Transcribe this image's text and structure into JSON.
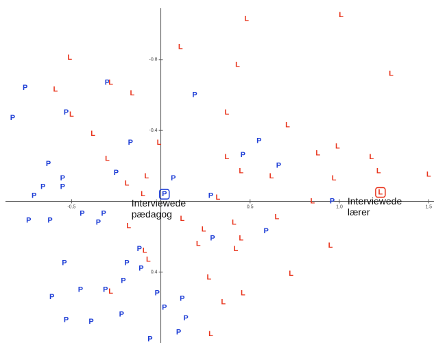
{
  "chart_data": {
    "type": "scatter",
    "xlim": [
      -0.87,
      1.53
    ],
    "ylim": [
      -1.09,
      0.8
    ],
    "y_inverted": true,
    "xticks": [
      -0.5,
      0.5,
      {
        "value": 1,
        "label": "1.0"
      },
      1.5
    ],
    "yticks": [
      -0.8,
      -0.4,
      0.4
    ],
    "series": [
      {
        "marker": "P",
        "color": "#1f3fd6",
        "x": [
          -0.76,
          -0.53,
          -0.83,
          -0.3,
          -0.17,
          -0.63,
          -0.25,
          -0.55,
          -0.66,
          -0.55,
          -0.71,
          0.07,
          0.19,
          0.55,
          0.46,
          0.66,
          0.28,
          -0.74,
          -0.62,
          -0.44,
          -0.32,
          -0.35,
          0.29,
          0.59,
          -0.12,
          -0.54,
          -0.19,
          -0.11,
          -0.21,
          -0.45,
          -0.31,
          -0.61,
          -0.02,
          0.12,
          0.02,
          -0.22,
          -0.53,
          -0.39,
          0.14,
          0.1,
          -0.06,
          0.96,
          0.02
        ],
        "values": [
          -0.64,
          -0.5,
          -0.47,
          -0.67,
          -0.33,
          -0.21,
          -0.16,
          -0.13,
          -0.08,
          -0.08,
          -0.03,
          -0.13,
          -0.6,
          -0.34,
          -0.26,
          -0.2,
          -0.03,
          0.11,
          0.11,
          0.07,
          0.07,
          0.12,
          0.21,
          0.17,
          0.27,
          0.35,
          0.35,
          0.38,
          0.45,
          0.5,
          0.5,
          0.54,
          0.52,
          0.55,
          0.6,
          0.64,
          0.67,
          0.68,
          0.66,
          0.74,
          0.78,
          0.0,
          -0.04
        ]
      },
      {
        "marker": "L",
        "color": "#e8341c",
        "x": [
          0.48,
          1.01,
          0.11,
          -0.51,
          0.43,
          1.29,
          -0.59,
          -0.28,
          -0.16,
          -0.5,
          0.37,
          0.71,
          -0.38,
          -0.01,
          0.99,
          0.37,
          0.88,
          1.18,
          -0.3,
          0.45,
          -0.08,
          1.22,
          0.62,
          0.97,
          1.5,
          -0.19,
          -0.1,
          0.32,
          0.85,
          0.12,
          0.65,
          0.41,
          -0.18,
          0.24,
          0.21,
          0.45,
          0.42,
          0.95,
          -0.09,
          -0.07,
          0.73,
          0.27,
          0.46,
          0.35,
          -0.28,
          0.28,
          1.23
        ],
        "values": [
          -1.03,
          -1.05,
          -0.87,
          -0.81,
          -0.77,
          -0.72,
          -0.63,
          -0.67,
          -0.61,
          -0.49,
          -0.5,
          -0.43,
          -0.38,
          -0.33,
          -0.31,
          -0.25,
          -0.27,
          -0.25,
          -0.24,
          -0.17,
          -0.14,
          -0.17,
          -0.14,
          -0.13,
          -0.15,
          -0.1,
          -0.04,
          -0.02,
          0.0,
          0.1,
          0.09,
          0.12,
          0.14,
          0.16,
          0.24,
          0.21,
          0.27,
          0.25,
          0.28,
          0.33,
          0.41,
          0.43,
          0.52,
          0.57,
          0.51,
          0.75,
          -0.05
        ]
      }
    ],
    "annotations": [
      {
        "text": [
          "Interviewede",
          "pædagog"
        ],
        "x": 0.02,
        "y": -0.04,
        "color": "#1f3fd6"
      },
      {
        "text": [
          "Interviewede",
          "lærer"
        ],
        "x": 1.23,
        "y": -0.05,
        "color": "#e8341c"
      }
    ]
  }
}
